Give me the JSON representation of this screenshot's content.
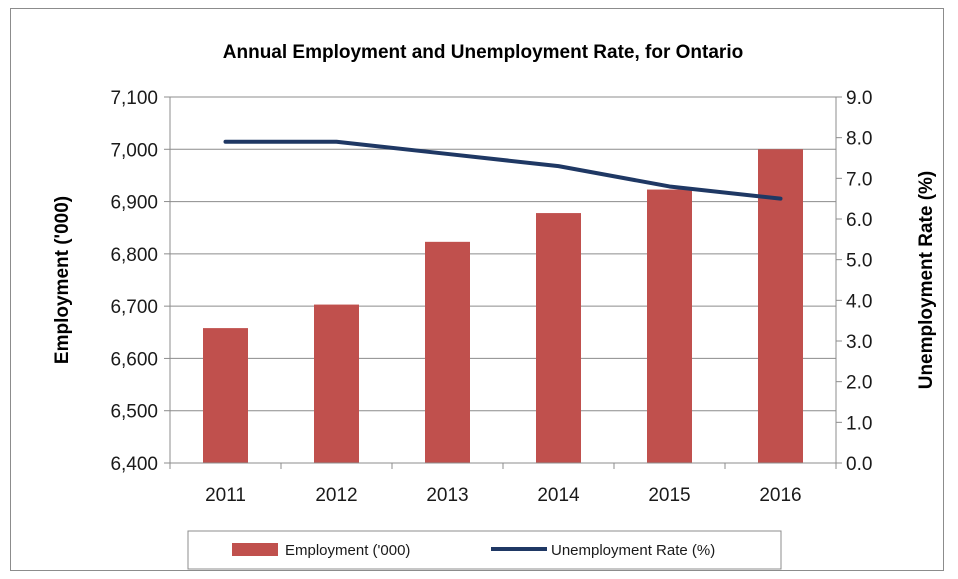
{
  "chart_data": {
    "type": "bar",
    "title": "Annual Employment and Unemployment Rate, for Ontario",
    "categories": [
      "2011",
      "2012",
      "2013",
      "2014",
      "2015",
      "2016"
    ],
    "ylabel": "Employment ('000)",
    "y2label": "Unemployment Rate (%)",
    "ylim": [
      6400,
      7100
    ],
    "y_ticks": [
      "6,400",
      "6,500",
      "6,600",
      "6,700",
      "6,800",
      "6,900",
      "7,000",
      "7,100"
    ],
    "y2lim": [
      0,
      9
    ],
    "y2_ticks": [
      "0.0",
      "1.0",
      "2.0",
      "3.0",
      "4.0",
      "5.0",
      "6.0",
      "7.0",
      "8.0",
      "9.0"
    ],
    "series": [
      {
        "name": "Employment ('000)",
        "type": "bar",
        "axis": "left",
        "color": "#c0504d",
        "values": [
          6658,
          6703,
          6823,
          6878,
          6923,
          7000
        ]
      },
      {
        "name": "Unemployment Rate (%)",
        "type": "line",
        "axis": "right",
        "color": "#1f3864",
        "values": [
          7.9,
          7.9,
          7.6,
          7.3,
          6.8,
          6.5
        ]
      }
    ],
    "grid": true,
    "legend_position": "bottom"
  }
}
